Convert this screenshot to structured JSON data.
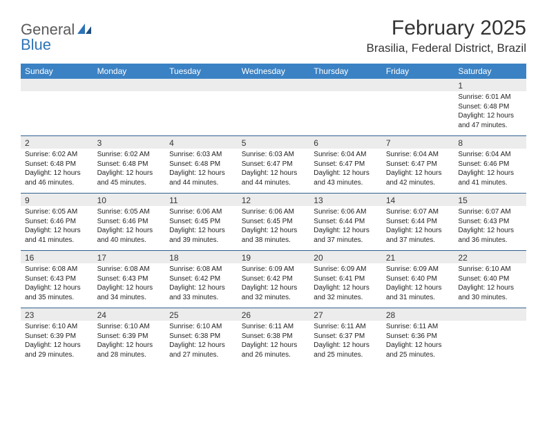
{
  "logo": {
    "text1": "General",
    "text2": "Blue"
  },
  "title": "February 2025",
  "location": "Brasilia, Federal District, Brazil",
  "colors": {
    "header_bg": "#3b82c4",
    "header_text": "#ffffff",
    "band_bg": "#ececec",
    "rule": "#2d5f8f",
    "body_text": "#222222",
    "logo_gray": "#5a5a5a",
    "logo_blue": "#2d73b8"
  },
  "dow": [
    "Sunday",
    "Monday",
    "Tuesday",
    "Wednesday",
    "Thursday",
    "Friday",
    "Saturday"
  ],
  "weeks": [
    [
      {
        "n": "",
        "sr": "",
        "ss": "",
        "dl": ""
      },
      {
        "n": "",
        "sr": "",
        "ss": "",
        "dl": ""
      },
      {
        "n": "",
        "sr": "",
        "ss": "",
        "dl": ""
      },
      {
        "n": "",
        "sr": "",
        "ss": "",
        "dl": ""
      },
      {
        "n": "",
        "sr": "",
        "ss": "",
        "dl": ""
      },
      {
        "n": "",
        "sr": "",
        "ss": "",
        "dl": ""
      },
      {
        "n": "1",
        "sr": "Sunrise: 6:01 AM",
        "ss": "Sunset: 6:48 PM",
        "dl": "Daylight: 12 hours and 47 minutes."
      }
    ],
    [
      {
        "n": "2",
        "sr": "Sunrise: 6:02 AM",
        "ss": "Sunset: 6:48 PM",
        "dl": "Daylight: 12 hours and 46 minutes."
      },
      {
        "n": "3",
        "sr": "Sunrise: 6:02 AM",
        "ss": "Sunset: 6:48 PM",
        "dl": "Daylight: 12 hours and 45 minutes."
      },
      {
        "n": "4",
        "sr": "Sunrise: 6:03 AM",
        "ss": "Sunset: 6:48 PM",
        "dl": "Daylight: 12 hours and 44 minutes."
      },
      {
        "n": "5",
        "sr": "Sunrise: 6:03 AM",
        "ss": "Sunset: 6:47 PM",
        "dl": "Daylight: 12 hours and 44 minutes."
      },
      {
        "n": "6",
        "sr": "Sunrise: 6:04 AM",
        "ss": "Sunset: 6:47 PM",
        "dl": "Daylight: 12 hours and 43 minutes."
      },
      {
        "n": "7",
        "sr": "Sunrise: 6:04 AM",
        "ss": "Sunset: 6:47 PM",
        "dl": "Daylight: 12 hours and 42 minutes."
      },
      {
        "n": "8",
        "sr": "Sunrise: 6:04 AM",
        "ss": "Sunset: 6:46 PM",
        "dl": "Daylight: 12 hours and 41 minutes."
      }
    ],
    [
      {
        "n": "9",
        "sr": "Sunrise: 6:05 AM",
        "ss": "Sunset: 6:46 PM",
        "dl": "Daylight: 12 hours and 41 minutes."
      },
      {
        "n": "10",
        "sr": "Sunrise: 6:05 AM",
        "ss": "Sunset: 6:46 PM",
        "dl": "Daylight: 12 hours and 40 minutes."
      },
      {
        "n": "11",
        "sr": "Sunrise: 6:06 AM",
        "ss": "Sunset: 6:45 PM",
        "dl": "Daylight: 12 hours and 39 minutes."
      },
      {
        "n": "12",
        "sr": "Sunrise: 6:06 AM",
        "ss": "Sunset: 6:45 PM",
        "dl": "Daylight: 12 hours and 38 minutes."
      },
      {
        "n": "13",
        "sr": "Sunrise: 6:06 AM",
        "ss": "Sunset: 6:44 PM",
        "dl": "Daylight: 12 hours and 37 minutes."
      },
      {
        "n": "14",
        "sr": "Sunrise: 6:07 AM",
        "ss": "Sunset: 6:44 PM",
        "dl": "Daylight: 12 hours and 37 minutes."
      },
      {
        "n": "15",
        "sr": "Sunrise: 6:07 AM",
        "ss": "Sunset: 6:43 PM",
        "dl": "Daylight: 12 hours and 36 minutes."
      }
    ],
    [
      {
        "n": "16",
        "sr": "Sunrise: 6:08 AM",
        "ss": "Sunset: 6:43 PM",
        "dl": "Daylight: 12 hours and 35 minutes."
      },
      {
        "n": "17",
        "sr": "Sunrise: 6:08 AM",
        "ss": "Sunset: 6:43 PM",
        "dl": "Daylight: 12 hours and 34 minutes."
      },
      {
        "n": "18",
        "sr": "Sunrise: 6:08 AM",
        "ss": "Sunset: 6:42 PM",
        "dl": "Daylight: 12 hours and 33 minutes."
      },
      {
        "n": "19",
        "sr": "Sunrise: 6:09 AM",
        "ss": "Sunset: 6:42 PM",
        "dl": "Daylight: 12 hours and 32 minutes."
      },
      {
        "n": "20",
        "sr": "Sunrise: 6:09 AM",
        "ss": "Sunset: 6:41 PM",
        "dl": "Daylight: 12 hours and 32 minutes."
      },
      {
        "n": "21",
        "sr": "Sunrise: 6:09 AM",
        "ss": "Sunset: 6:40 PM",
        "dl": "Daylight: 12 hours and 31 minutes."
      },
      {
        "n": "22",
        "sr": "Sunrise: 6:10 AM",
        "ss": "Sunset: 6:40 PM",
        "dl": "Daylight: 12 hours and 30 minutes."
      }
    ],
    [
      {
        "n": "23",
        "sr": "Sunrise: 6:10 AM",
        "ss": "Sunset: 6:39 PM",
        "dl": "Daylight: 12 hours and 29 minutes."
      },
      {
        "n": "24",
        "sr": "Sunrise: 6:10 AM",
        "ss": "Sunset: 6:39 PM",
        "dl": "Daylight: 12 hours and 28 minutes."
      },
      {
        "n": "25",
        "sr": "Sunrise: 6:10 AM",
        "ss": "Sunset: 6:38 PM",
        "dl": "Daylight: 12 hours and 27 minutes."
      },
      {
        "n": "26",
        "sr": "Sunrise: 6:11 AM",
        "ss": "Sunset: 6:38 PM",
        "dl": "Daylight: 12 hours and 26 minutes."
      },
      {
        "n": "27",
        "sr": "Sunrise: 6:11 AM",
        "ss": "Sunset: 6:37 PM",
        "dl": "Daylight: 12 hours and 25 minutes."
      },
      {
        "n": "28",
        "sr": "Sunrise: 6:11 AM",
        "ss": "Sunset: 6:36 PM",
        "dl": "Daylight: 12 hours and 25 minutes."
      },
      {
        "n": "",
        "sr": "",
        "ss": "",
        "dl": ""
      }
    ]
  ]
}
